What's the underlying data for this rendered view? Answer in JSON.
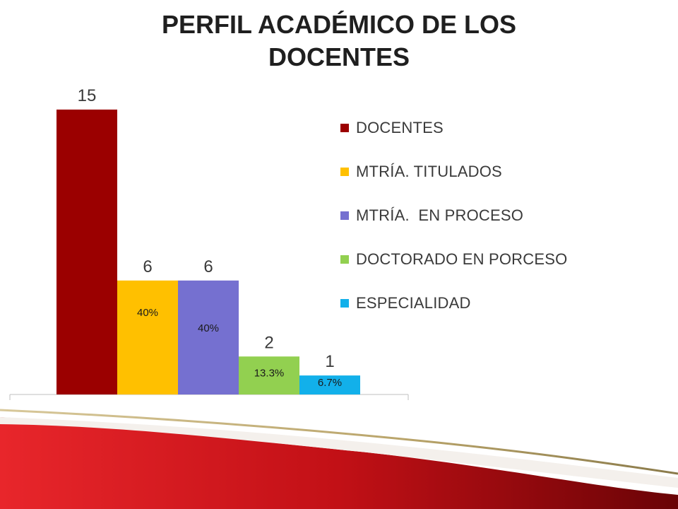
{
  "slide": {
    "title_lines": [
      "PERFIL ACADÉMICO DE LOS",
      "DOCENTES"
    ]
  },
  "chart_data": {
    "type": "bar",
    "title": "PERFIL ACADÉMICO DE LOS DOCENTES",
    "categories": [
      "DOCENTES",
      "MTRÍA. TITULADOS",
      "MTRÍA.  EN PROCESO",
      "DOCTORADO EN PORCESO",
      "ESPECIALIDAD"
    ],
    "values": [
      15,
      6,
      6,
      2,
      1
    ],
    "value_labels": [
      "15",
      "6",
      "6",
      "2",
      "1"
    ],
    "percent_labels": [
      "",
      "40%",
      "40%",
      "13.3%",
      "6.7%"
    ],
    "colors": [
      "#9b0000",
      "#ffc000",
      "#7570d0",
      "#92d050",
      "#12b0ea"
    ],
    "ylim": [
      0,
      15
    ],
    "grid": false,
    "legend_position": "right"
  }
}
